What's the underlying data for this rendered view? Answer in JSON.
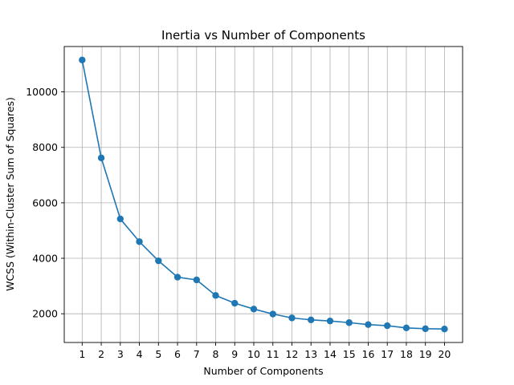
{
  "chart_data": {
    "type": "line",
    "title": "Inertia vs Number of Components",
    "xlabel": "Number of Components",
    "ylabel": "WCSS (Within-Cluster Sum of Squares)",
    "x": [
      1,
      2,
      3,
      4,
      5,
      6,
      7,
      8,
      9,
      10,
      11,
      12,
      13,
      14,
      15,
      16,
      17,
      18,
      19,
      20
    ],
    "series": [
      {
        "values": [
          11150,
          7620,
          5420,
          4600,
          3910,
          3320,
          3220,
          2660,
          2380,
          2170,
          1990,
          1850,
          1780,
          1740,
          1680,
          1610,
          1570,
          1490,
          1460,
          1450
        ],
        "color": "#1f77b4",
        "marker": "circle"
      }
    ],
    "xticks": [
      1,
      2,
      3,
      4,
      5,
      6,
      7,
      8,
      9,
      10,
      11,
      12,
      13,
      14,
      15,
      16,
      17,
      18,
      19,
      20
    ],
    "yticks": [
      2000,
      4000,
      6000,
      8000,
      10000
    ],
    "xlim": [
      0.06,
      20.95
    ],
    "ylim": [
      964,
      11636
    ],
    "grid": true
  }
}
